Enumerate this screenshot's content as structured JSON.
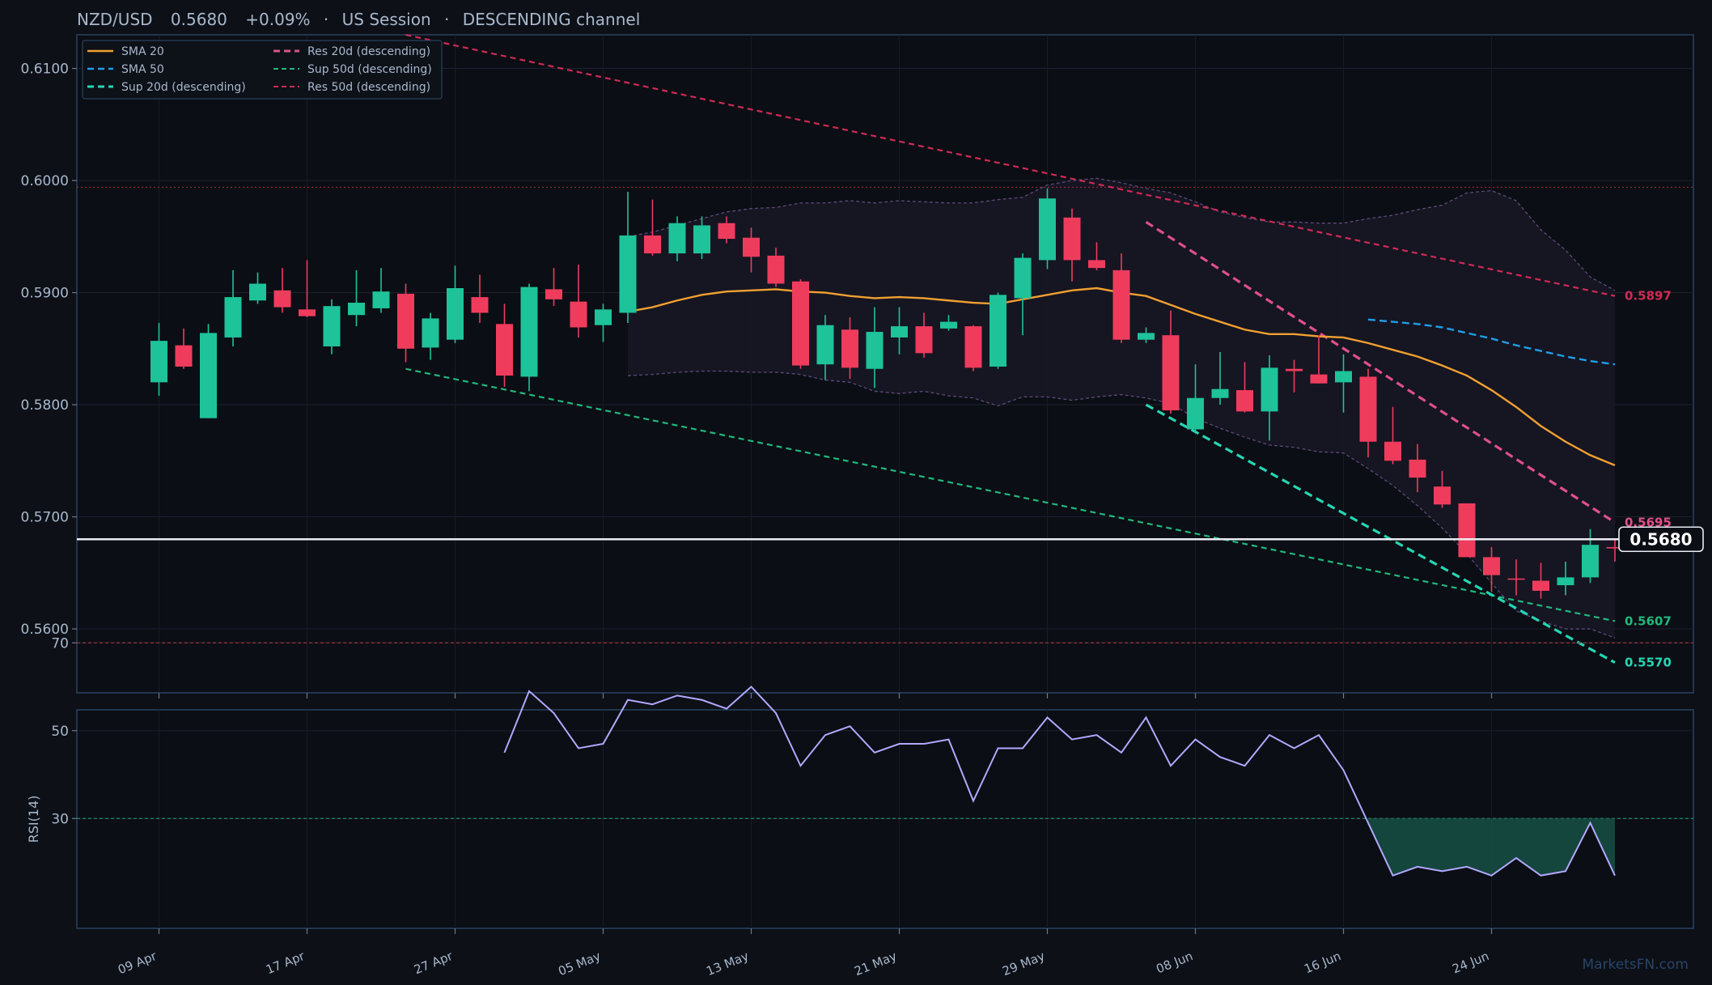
{
  "header": {
    "symbol": "NZD/USD",
    "price": "0.5680",
    "change": "+0.09%",
    "session": "US Session",
    "channel": "DESCENDING channel",
    "separator": "·"
  },
  "watermark": "MarketsFN.com",
  "colors": {
    "background": "#0d1017",
    "panel_border": "#2a4260",
    "bull": "#1ec39a",
    "bear": "#ef3c5d",
    "sma20": "#f0a030",
    "sma50": "#1e9ee8",
    "sup20": "#25d6b4",
    "res20": "#e0508a",
    "sup50": "#21b87e",
    "res50": "#cf2a55",
    "rsi": "#b2a8ff",
    "text": "#a8b8cc"
  },
  "chart_data": {
    "type": "candlestick",
    "x_tick_labels": [
      "09 Apr",
      "17 Apr",
      "27 Apr",
      "05 May",
      "13 May",
      "21 May",
      "29 May",
      "08 Jun",
      "16 Jun",
      "24 Jun"
    ],
    "x_tick_index": [
      0,
      6,
      12,
      18,
      24,
      30,
      36,
      42,
      48,
      54
    ],
    "y_ticks": [
      0.56,
      0.57,
      0.58,
      0.59,
      0.6,
      0.61
    ],
    "y_tick_labels": [
      "0.5600",
      "0.5700",
      "0.5800",
      "0.5900",
      "0.6000",
      "0.6100"
    ],
    "ylim": [
      0.5543,
      0.613
    ],
    "last_price": 0.568,
    "last_price_label": "0.5680",
    "candles": [
      {
        "o": 0.582,
        "h": 0.5873,
        "l": 0.5808,
        "c": 0.5857
      },
      {
        "o": 0.5853,
        "h": 0.5868,
        "l": 0.5832,
        "c": 0.5834
      },
      {
        "o": 0.5788,
        "h": 0.5872,
        "l": 0.5788,
        "c": 0.5864
      },
      {
        "o": 0.586,
        "h": 0.592,
        "l": 0.5852,
        "c": 0.5896
      },
      {
        "o": 0.5893,
        "h": 0.5918,
        "l": 0.589,
        "c": 0.5908
      },
      {
        "o": 0.5902,
        "h": 0.5922,
        "l": 0.5882,
        "c": 0.5887
      },
      {
        "o": 0.5885,
        "h": 0.5929,
        "l": 0.5878,
        "c": 0.5879
      },
      {
        "o": 0.5852,
        "h": 0.5894,
        "l": 0.5845,
        "c": 0.5888
      },
      {
        "o": 0.588,
        "h": 0.592,
        "l": 0.587,
        "c": 0.5891
      },
      {
        "o": 0.5886,
        "h": 0.5922,
        "l": 0.5882,
        "c": 0.5901
      },
      {
        "o": 0.5899,
        "h": 0.5908,
        "l": 0.5838,
        "c": 0.585
      },
      {
        "o": 0.5851,
        "h": 0.5882,
        "l": 0.584,
        "c": 0.5877
      },
      {
        "o": 0.5858,
        "h": 0.5924,
        "l": 0.5855,
        "c": 0.5904
      },
      {
        "o": 0.5896,
        "h": 0.5916,
        "l": 0.5873,
        "c": 0.5882
      },
      {
        "o": 0.5872,
        "h": 0.589,
        "l": 0.5816,
        "c": 0.5826
      },
      {
        "o": 0.5825,
        "h": 0.5908,
        "l": 0.5812,
        "c": 0.5905
      },
      {
        "o": 0.5903,
        "h": 0.5922,
        "l": 0.5888,
        "c": 0.5894
      },
      {
        "o": 0.5892,
        "h": 0.5925,
        "l": 0.586,
        "c": 0.5869
      },
      {
        "o": 0.5871,
        "h": 0.589,
        "l": 0.5856,
        "c": 0.5885
      },
      {
        "o": 0.5882,
        "h": 0.599,
        "l": 0.5873,
        "c": 0.5951
      },
      {
        "o": 0.5951,
        "h": 0.5983,
        "l": 0.5933,
        "c": 0.5935
      },
      {
        "o": 0.5935,
        "h": 0.5968,
        "l": 0.5928,
        "c": 0.5962
      },
      {
        "o": 0.5935,
        "h": 0.5968,
        "l": 0.593,
        "c": 0.596
      },
      {
        "o": 0.5962,
        "h": 0.5968,
        "l": 0.5944,
        "c": 0.5948
      },
      {
        "o": 0.5949,
        "h": 0.5958,
        "l": 0.5918,
        "c": 0.5932
      },
      {
        "o": 0.5933,
        "h": 0.594,
        "l": 0.5905,
        "c": 0.5908
      },
      {
        "o": 0.591,
        "h": 0.5912,
        "l": 0.5832,
        "c": 0.5835
      },
      {
        "o": 0.5836,
        "h": 0.588,
        "l": 0.5822,
        "c": 0.5871
      },
      {
        "o": 0.5867,
        "h": 0.5878,
        "l": 0.5823,
        "c": 0.5833
      },
      {
        "o": 0.5832,
        "h": 0.5887,
        "l": 0.5815,
        "c": 0.5865
      },
      {
        "o": 0.586,
        "h": 0.5887,
        "l": 0.5845,
        "c": 0.587
      },
      {
        "o": 0.587,
        "h": 0.5882,
        "l": 0.5842,
        "c": 0.5846
      },
      {
        "o": 0.5868,
        "h": 0.588,
        "l": 0.5866,
        "c": 0.5874
      },
      {
        "o": 0.587,
        "h": 0.5871,
        "l": 0.583,
        "c": 0.5833
      },
      {
        "o": 0.5834,
        "h": 0.59,
        "l": 0.5832,
        "c": 0.5898
      },
      {
        "o": 0.5895,
        "h": 0.5935,
        "l": 0.5862,
        "c": 0.5931
      },
      {
        "o": 0.5929,
        "h": 0.5993,
        "l": 0.5921,
        "c": 0.5984
      },
      {
        "o": 0.5967,
        "h": 0.5975,
        "l": 0.591,
        "c": 0.5929
      },
      {
        "o": 0.5929,
        "h": 0.5945,
        "l": 0.592,
        "c": 0.5922
      },
      {
        "o": 0.592,
        "h": 0.5935,
        "l": 0.5855,
        "c": 0.5858
      },
      {
        "o": 0.5858,
        "h": 0.5869,
        "l": 0.5855,
        "c": 0.5864
      },
      {
        "o": 0.5862,
        "h": 0.5884,
        "l": 0.5792,
        "c": 0.5795
      },
      {
        "o": 0.5778,
        "h": 0.5836,
        "l": 0.5776,
        "c": 0.5806
      },
      {
        "o": 0.5806,
        "h": 0.5847,
        "l": 0.58,
        "c": 0.5814
      },
      {
        "o": 0.5813,
        "h": 0.5838,
        "l": 0.5793,
        "c": 0.5794
      },
      {
        "o": 0.5794,
        "h": 0.5844,
        "l": 0.5768,
        "c": 0.5833
      },
      {
        "o": 0.5832,
        "h": 0.584,
        "l": 0.5811,
        "c": 0.583
      },
      {
        "o": 0.5827,
        "h": 0.5862,
        "l": 0.5819,
        "c": 0.5819
      },
      {
        "o": 0.582,
        "h": 0.5845,
        "l": 0.5793,
        "c": 0.583
      },
      {
        "o": 0.5825,
        "h": 0.5832,
        "l": 0.5753,
        "c": 0.5767
      },
      {
        "o": 0.5767,
        "h": 0.5798,
        "l": 0.5747,
        "c": 0.575
      },
      {
        "o": 0.5751,
        "h": 0.5765,
        "l": 0.5722,
        "c": 0.5735
      },
      {
        "o": 0.5727,
        "h": 0.5741,
        "l": 0.5708,
        "c": 0.5711
      },
      {
        "o": 0.5712,
        "h": 0.5712,
        "l": 0.5664,
        "c": 0.5664
      },
      {
        "o": 0.5664,
        "h": 0.5673,
        "l": 0.5633,
        "c": 0.5648
      },
      {
        "o": 0.5645,
        "h": 0.5662,
        "l": 0.563,
        "c": 0.5644
      },
      {
        "o": 0.5643,
        "h": 0.5659,
        "l": 0.5627,
        "c": 0.5634
      },
      {
        "o": 0.5639,
        "h": 0.566,
        "l": 0.563,
        "c": 0.5646
      },
      {
        "o": 0.5646,
        "h": 0.5689,
        "l": 0.5641,
        "c": 0.5675
      },
      {
        "o": 0.5673,
        "h": 0.568,
        "l": 0.566,
        "c": 0.5672
      }
    ],
    "sma20": {
      "start": 19,
      "values": [
        0.5883,
        0.5887,
        0.5893,
        0.5898,
        0.5901,
        0.5902,
        0.5903,
        0.5901,
        0.59,
        0.5897,
        0.5895,
        0.5896,
        0.5895,
        0.5893,
        0.5891,
        0.589,
        0.5894,
        0.5898,
        0.5902,
        0.5904,
        0.59,
        0.5897,
        0.5889,
        0.5881,
        0.5874,
        0.5867,
        0.5863,
        0.5863,
        0.5861,
        0.586,
        0.5855,
        0.5849,
        0.5843,
        0.5835,
        0.5826,
        0.5813,
        0.5798,
        0.5781,
        0.5767,
        0.5755,
        0.5746
      ]
    },
    "sma50": {
      "start": 49,
      "values": [
        0.5876,
        0.5874,
        0.5872,
        0.5869,
        0.5864,
        0.5859,
        0.5853,
        0.5848,
        0.5843,
        0.5839,
        0.5836
      ]
    },
    "bollinger": {
      "start": 19,
      "upper": [
        0.595,
        0.5954,
        0.596,
        0.5966,
        0.5972,
        0.5975,
        0.5976,
        0.598,
        0.598,
        0.5982,
        0.598,
        0.5982,
        0.5981,
        0.598,
        0.598,
        0.5983,
        0.5985,
        0.5996,
        0.6,
        0.6002,
        0.5998,
        0.5993,
        0.5989,
        0.5981,
        0.5972,
        0.5967,
        0.5963,
        0.5963,
        0.5962,
        0.5962,
        0.5966,
        0.5969,
        0.5974,
        0.5978,
        0.5989,
        0.5991,
        0.5982,
        0.5956,
        0.5938,
        0.5914,
        0.5902
      ],
      "lower": [
        0.5826,
        0.5827,
        0.5829,
        0.583,
        0.583,
        0.5829,
        0.5829,
        0.5827,
        0.5822,
        0.582,
        0.5812,
        0.581,
        0.5812,
        0.5808,
        0.5806,
        0.5799,
        0.5807,
        0.5807,
        0.5804,
        0.5807,
        0.5809,
        0.5806,
        0.5801,
        0.5788,
        0.5779,
        0.5771,
        0.5764,
        0.5762,
        0.5758,
        0.5757,
        0.5743,
        0.5728,
        0.571,
        0.569,
        0.5667,
        0.5641,
        0.5616,
        0.5607,
        0.56,
        0.56,
        0.5592
      ]
    },
    "lines": [
      {
        "name": "Res 50d (descending)",
        "points": [
          [
            10,
            0.613
          ],
          [
            59,
            0.5897
          ]
        ],
        "color": "#cf2a55",
        "dash": "7,5",
        "width": 2.2,
        "label": "0.5897"
      },
      {
        "name": "Sup 50d (descending)",
        "points": [
          [
            10,
            0.5832
          ],
          [
            59,
            0.5607
          ]
        ],
        "color": "#21b87e",
        "dash": "7,5",
        "width": 2.2,
        "label": "0.5607"
      },
      {
        "name": "Res 20d (descending)",
        "points": [
          [
            40,
            0.5963
          ],
          [
            59,
            0.5695
          ]
        ],
        "color": "#e0508a",
        "dash": "10,6",
        "width": 3.2,
        "label": "0.5695"
      },
      {
        "name": "Sup 20d (descending)",
        "points": [
          [
            40,
            0.58
          ],
          [
            59,
            0.557
          ]
        ],
        "color": "#25d6b4",
        "dash": "10,6",
        "width": 3.2,
        "label": "0.5570"
      }
    ],
    "resistance_level": 0.5994,
    "legend": [
      {
        "label": "SMA 20",
        "color": "#f0a030",
        "dash": "none",
        "width": 2.4
      },
      {
        "label": "Res 20d (descending)",
        "color": "#e0508a",
        "dash": "8,5",
        "width": 3
      },
      {
        "label": "SMA 50",
        "color": "#1e9ee8",
        "dash": "8,5",
        "width": 2.4
      },
      {
        "label": "Sup 50d (descending)",
        "color": "#21b87e",
        "dash": "6,4",
        "width": 2
      },
      {
        "label": "Sup 20d (descending)",
        "color": "#25d6b4",
        "dash": "8,5",
        "width": 3
      },
      {
        "label": "Res 50d (descending)",
        "color": "#cf2a55",
        "dash": "6,4",
        "width": 2
      }
    ],
    "legend_placement": "top-left",
    "rsi": {
      "label": "RSI(14)",
      "start": 14,
      "values": [
        45,
        59,
        54,
        46,
        47,
        57,
        56,
        58,
        57,
        55,
        60,
        54,
        42,
        49,
        51,
        45,
        47,
        47,
        48,
        34,
        46,
        46,
        53,
        48,
        49,
        45,
        53,
        42,
        48,
        44,
        42,
        49,
        46,
        49,
        41,
        29,
        17,
        19,
        18,
        19,
        17,
        21,
        17,
        18,
        29,
        17
      ],
      "ylim": [
        0,
        100
      ],
      "y_ticks": [
        30,
        50,
        70
      ],
      "y_tick_labels": [
        "30",
        "50",
        "70"
      ],
      "overbought": 70,
      "oversold": 30
    }
  }
}
